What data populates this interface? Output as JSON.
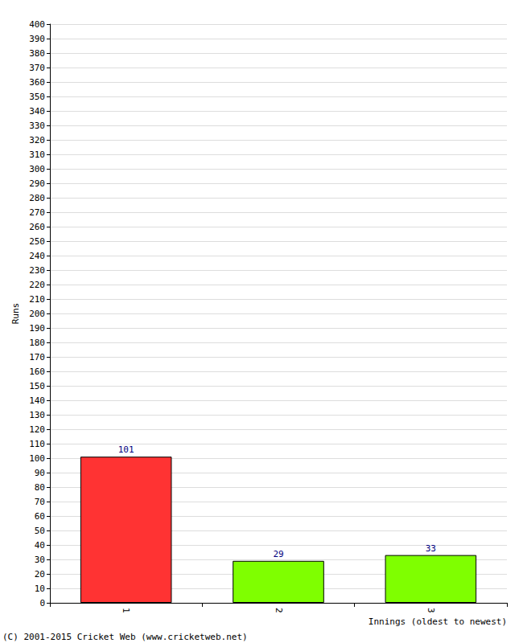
{
  "chart_data": {
    "type": "bar",
    "categories": [
      "1",
      "2",
      "3"
    ],
    "values": [
      101,
      29,
      33
    ],
    "colors": [
      "#ff3333",
      "#7fff00",
      "#7fff00"
    ],
    "x_label": "Innings (oldest to newest)",
    "y_label": "Runs",
    "annotation": "(C) 2001-2015 Cricket Web (www.cricketweb.net)",
    "ylim": [
      0,
      400
    ],
    "yticks": [
      0,
      10,
      20,
      30,
      40,
      50,
      60,
      70,
      80,
      90,
      100,
      110,
      120,
      130,
      140,
      150,
      160,
      170,
      180,
      190,
      200,
      210,
      220,
      230,
      240,
      250,
      260,
      270,
      280,
      290,
      300,
      310,
      320,
      330,
      340,
      350,
      360,
      370,
      380,
      390,
      400
    ],
    "grid": true,
    "data_labels": true
  }
}
